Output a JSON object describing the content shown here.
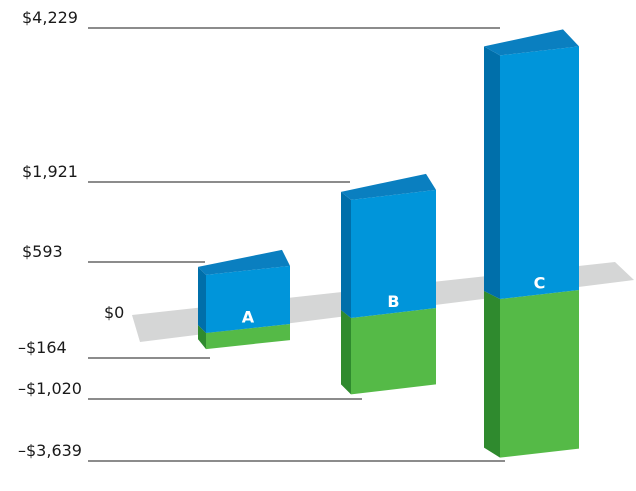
{
  "chart_data": {
    "type": "bar",
    "title": "",
    "xlabel": "",
    "ylabel": "",
    "categories": [
      "A",
      "B",
      "C"
    ],
    "series": [
      {
        "values": [
          593,
          1921,
          4229
        ]
      },
      {
        "values": [
          -164,
          -1020,
          -3639
        ]
      }
    ],
    "tick_labels": {
      "positive": [
        "$593",
        "$1,921",
        "$4,229"
      ],
      "negative": [
        "–$164",
        "–$1,020",
        "–$3,639"
      ],
      "zero": "$0"
    },
    "grid": false,
    "legend": "none",
    "colors": {
      "positive_front": "#0095DA",
      "positive_side": "#006FAA",
      "positive_top": "#0A7FC0",
      "negative_front": "#55BA47",
      "negative_side": "#2F8A2E",
      "plane": "#D5D6D6",
      "leader": "#1a1a1a",
      "text": "#1a1a1a",
      "bar_label": "#ffffff"
    }
  }
}
